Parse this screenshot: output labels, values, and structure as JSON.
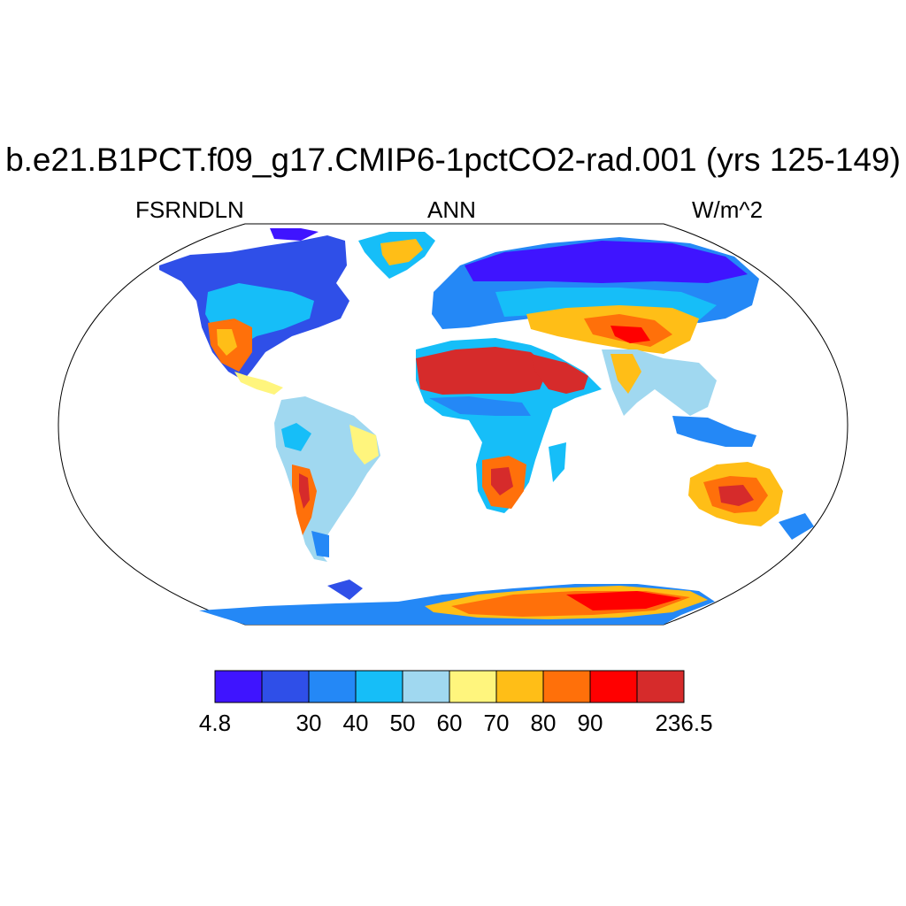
{
  "title": "b.e21.B1PCT.f09_g17.CMIP6-1pctCO2-rad.001 (yrs 125-149)",
  "variable": "FSRNDLN",
  "season": "ANN",
  "units": "W/m^2",
  "projection": "robinson",
  "colorbar": {
    "colors": [
      "#3f14ff",
      "#2f4fe8",
      "#2488f6",
      "#16bef8",
      "#a0d8f0",
      "#fff57d",
      "#ffbe17",
      "#ff700a",
      "#ff0000",
      "#d62b2b"
    ],
    "labels": [
      "4.8",
      "",
      "30",
      "40",
      "50",
      "60",
      "70",
      "80",
      "90",
      "",
      "236.5"
    ]
  }
}
